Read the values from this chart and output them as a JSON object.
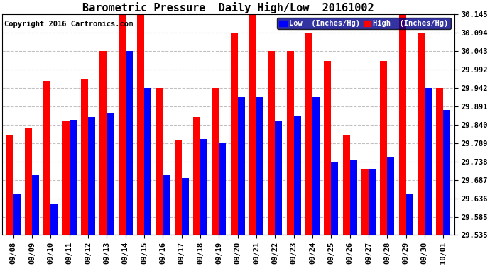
{
  "title": "Barometric Pressure  Daily High/Low  20161002",
  "copyright": "Copyright 2016 Cartronics.com",
  "legend_low": "Low  (Inches/Hg)",
  "legend_high": "High  (Inches/Hg)",
  "dates": [
    "09/08",
    "09/09",
    "09/10",
    "09/11",
    "09/12",
    "09/13",
    "09/14",
    "09/15",
    "09/16",
    "09/17",
    "09/18",
    "09/19",
    "09/20",
    "09/21",
    "09/22",
    "09/23",
    "09/24",
    "09/25",
    "09/26",
    "09/27",
    "09/28",
    "09/29",
    "09/30",
    "10/01"
  ],
  "high": [
    29.812,
    29.832,
    29.96,
    29.85,
    29.965,
    30.043,
    30.145,
    30.145,
    29.942,
    29.796,
    29.86,
    29.942,
    30.094,
    30.145,
    30.043,
    30.043,
    30.094,
    30.016,
    29.812,
    29.718,
    30.016,
    30.145,
    30.094,
    29.942
  ],
  "low": [
    29.648,
    29.7,
    29.621,
    29.852,
    29.86,
    29.87,
    30.043,
    29.942,
    29.7,
    29.693,
    29.8,
    29.789,
    29.916,
    29.916,
    29.85,
    29.863,
    29.916,
    29.738,
    29.744,
    29.718,
    29.75,
    29.648,
    29.942,
    29.88
  ],
  "ylim_min": 29.535,
  "ylim_max": 30.145,
  "yticks": [
    29.535,
    29.585,
    29.636,
    29.687,
    29.738,
    29.789,
    29.84,
    29.891,
    29.942,
    29.992,
    30.043,
    30.094,
    30.145
  ],
  "bar_color_low": "#0000ff",
  "bar_color_high": "#ff0000",
  "bg_color": "#ffffff",
  "grid_color": "#c0c0c0",
  "title_fontsize": 11,
  "tick_fontsize": 7.5,
  "copyright_fontsize": 7.5,
  "legend_fontsize": 7.5,
  "legend_bg": "#00008b"
}
